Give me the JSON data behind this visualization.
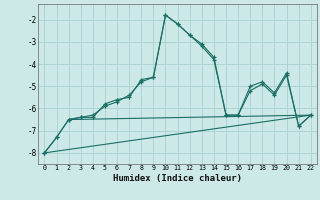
{
  "xlabel": "Humidex (Indice chaleur)",
  "bg_color": "#cce9e8",
  "grid_color": "#aed4d2",
  "line_color": "#1a6e65",
  "line1_x": [
    0,
    1,
    2,
    3,
    4,
    5,
    6,
    7,
    8,
    9,
    10,
    11,
    12,
    13,
    14,
    15,
    16,
    17,
    18,
    19,
    20,
    21,
    22
  ],
  "line1_y": [
    -8.0,
    -7.3,
    -6.5,
    -6.4,
    -6.3,
    -5.9,
    -5.7,
    -5.4,
    -4.8,
    -4.6,
    -1.8,
    -2.2,
    -2.7,
    -3.2,
    -3.8,
    -6.3,
    -6.3,
    -5.2,
    -4.9,
    -5.4,
    -4.5,
    -6.8,
    -6.3
  ],
  "line2_x": [
    0,
    1,
    2,
    3,
    4,
    5,
    6,
    7,
    8,
    9,
    10,
    11,
    12,
    13,
    14,
    15,
    16,
    17,
    18,
    19,
    20,
    21,
    22
  ],
  "line2_y": [
    -8.0,
    -7.3,
    -6.5,
    -6.4,
    -6.4,
    -5.8,
    -5.6,
    -5.5,
    -4.7,
    -4.6,
    -1.8,
    -2.2,
    -2.7,
    -3.1,
    -3.7,
    -6.3,
    -6.3,
    -5.0,
    -4.8,
    -5.3,
    -4.4,
    -6.8,
    -6.3
  ],
  "trend1_x": [
    0,
    22
  ],
  "trend1_y": [
    -8.0,
    -6.3
  ],
  "trend2_x": [
    2,
    22
  ],
  "trend2_y": [
    -6.5,
    -6.3
  ],
  "ylim": [
    -8.5,
    -1.3
  ],
  "xlim": [
    -0.5,
    22.5
  ],
  "yticks": [
    -8,
    -7,
    -6,
    -5,
    -4,
    -3,
    -2
  ],
  "xticks": [
    0,
    1,
    2,
    3,
    4,
    5,
    6,
    7,
    8,
    9,
    10,
    11,
    12,
    13,
    14,
    15,
    16,
    17,
    18,
    19,
    20,
    21,
    22
  ]
}
